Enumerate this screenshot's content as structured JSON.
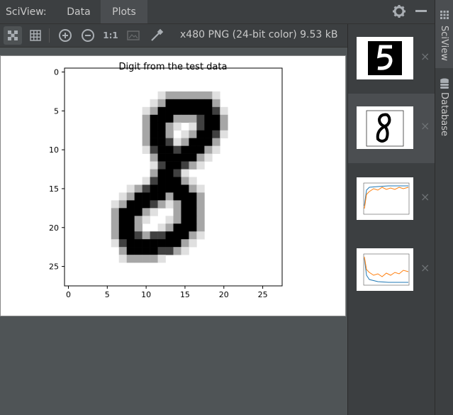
{
  "header": {
    "title": "SciView:",
    "tabs": [
      {
        "label": "Data",
        "active": false
      },
      {
        "label": "Plots",
        "active": true
      }
    ],
    "settings_icon": "gear-icon",
    "hide_icon": "minimize-icon"
  },
  "toolbar": {
    "buttons": [
      {
        "name": "chessboard-icon",
        "selected": true
      },
      {
        "name": "grid-icon",
        "selected": false
      },
      {
        "name": "zoom-in-icon",
        "selected": false
      },
      {
        "name": "zoom-out-icon",
        "selected": false
      },
      {
        "name": "actual-size-label",
        "label": "1:1",
        "selected": false
      },
      {
        "name": "fit-image-icon",
        "selected": false
      },
      {
        "name": "color-picker-icon",
        "selected": false
      }
    ],
    "image_info": "x480 PNG (24-bit color) 9.53 kB"
  },
  "plot": {
    "title": "Digit from the test data",
    "x_ticks": [
      "0",
      "5",
      "10",
      "15",
      "20",
      "25"
    ],
    "y_ticks": [
      "0",
      "5",
      "10",
      "15",
      "20",
      "25"
    ]
  },
  "thumbnails": [
    {
      "kind": "digit-5",
      "active": false
    },
    {
      "kind": "digit-8",
      "active": true
    },
    {
      "kind": "line-chart",
      "active": false
    },
    {
      "kind": "line-chart",
      "active": false
    }
  ],
  "close_glyph": "×",
  "sidebar": {
    "tabs": [
      {
        "label": "SciView",
        "active": true
      },
      {
        "label": "Database",
        "active": false
      }
    ]
  },
  "colors": {
    "panel": "#3c3f41",
    "canvas": "#4f5456",
    "text": "#c9c9c9"
  }
}
